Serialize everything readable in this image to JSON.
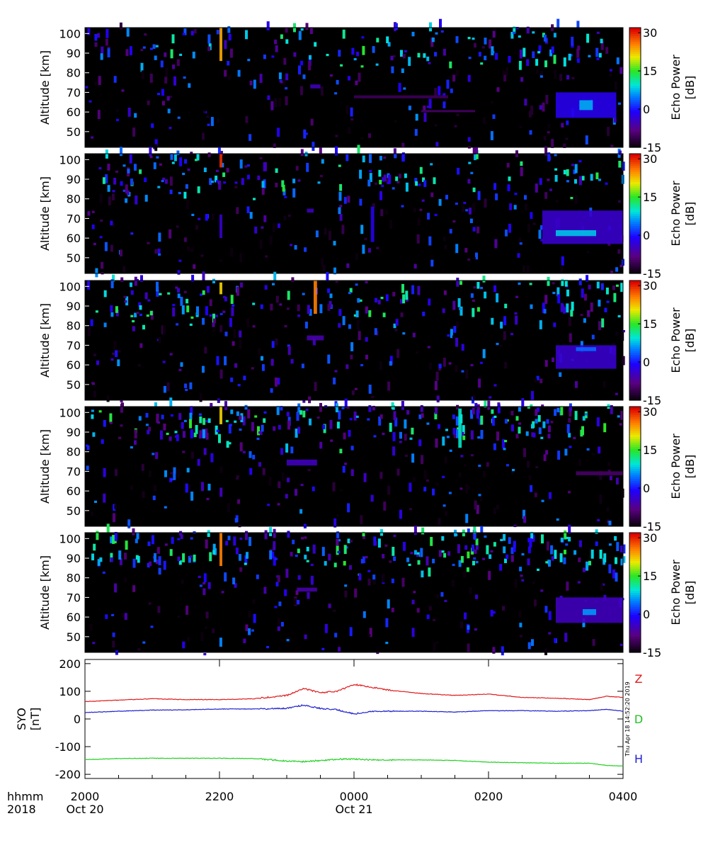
{
  "chart_data": [
    {
      "type": "heatmap",
      "panel": 1,
      "ylabel": "Altitude [km]",
      "yticks": [
        "100",
        "90",
        "80",
        "70",
        "60",
        "50"
      ],
      "ylim": [
        42,
        103
      ],
      "xlim": [
        "2018-10-20 20:00",
        "2018-10-21 04:00"
      ],
      "colorbar": {
        "label_line1": "Echo Power",
        "label_line2": "[dB]",
        "ticks": [
          "30",
          "15",
          "0",
          "-15"
        ],
        "range": [
          -15,
          32
        ]
      },
      "scatter_layers": [
        [
          86,
          103,
          120,
          -5
        ],
        [
          80,
          90,
          45,
          -3
        ],
        [
          40,
          80,
          160,
          -12
        ]
      ],
      "features": [
        {
          "t0": 2.0,
          "t1": 2.02,
          "alt0": 86,
          "alt1": 103,
          "dB": 24
        },
        {
          "t0": 3.35,
          "t1": 3.5,
          "alt0": 72,
          "alt1": 74,
          "dB": -5
        },
        {
          "t0": 4.0,
          "t1": 5.4,
          "alt0": 67,
          "alt1": 68.5,
          "dB": -11
        },
        {
          "t0": 5.0,
          "t1": 5.8,
          "alt0": 60,
          "alt1": 61,
          "dB": -10
        },
        {
          "t0": 7.0,
          "t1": 7.9,
          "alt0": 57,
          "alt1": 70,
          "dB": -2
        },
        {
          "t0": 7.35,
          "t1": 7.55,
          "alt0": 61,
          "alt1": 66,
          "dB": 7
        }
      ]
    },
    {
      "type": "heatmap",
      "panel": 2,
      "ylabel": "Altitude [km]",
      "yticks": [
        "100",
        "90",
        "80",
        "70",
        "60",
        "50"
      ],
      "ylim": [
        42,
        103
      ],
      "xlim": [
        "2018-10-20 20:00",
        "2018-10-21 04:00"
      ],
      "colorbar": {
        "label_line1": "Echo Power",
        "label_line2": "[dB]",
        "ticks": [
          "30",
          "15",
          "0",
          "-15"
        ],
        "range": [
          -15,
          32
        ]
      },
      "scatter_layers": [
        [
          85,
          103,
          140,
          -5
        ],
        [
          78,
          90,
          55,
          -3
        ],
        [
          40,
          80,
          160,
          -12
        ]
      ],
      "features": [
        {
          "t0": 2.0,
          "t1": 2.02,
          "alt0": 96,
          "alt1": 103,
          "dB": 30
        },
        {
          "t0": 2.0,
          "t1": 2.02,
          "alt0": 60,
          "alt1": 72,
          "dB": -4
        },
        {
          "t0": 3.3,
          "t1": 3.4,
          "alt0": 73,
          "alt1": 75,
          "dB": -5
        },
        {
          "t0": 4.25,
          "t1": 4.3,
          "alt0": 58,
          "alt1": 76,
          "dB": -2
        },
        {
          "t0": 6.8,
          "t1": 8.0,
          "alt0": 57,
          "alt1": 74,
          "dB": -4
        },
        {
          "t0": 7.0,
          "t1": 7.6,
          "alt0": 61,
          "alt1": 64,
          "dB": 8
        }
      ]
    },
    {
      "type": "heatmap",
      "panel": 3,
      "ylabel": "Altitude [km]",
      "yticks": [
        "100",
        "90",
        "80",
        "70",
        "60",
        "50"
      ],
      "ylim": [
        42,
        103
      ],
      "xlim": [
        "2018-10-20 20:00",
        "2018-10-21 04:00"
      ],
      "colorbar": {
        "label_line1": "Echo Power",
        "label_line2": "[dB]",
        "ticks": [
          "30",
          "15",
          "0",
          "-15"
        ],
        "range": [
          -15,
          32
        ]
      },
      "scatter_layers": [
        [
          84,
          103,
          160,
          -4
        ],
        [
          78,
          88,
          50,
          -3
        ],
        [
          40,
          80,
          160,
          -12
        ]
      ],
      "features": [
        {
          "t0": 3.4,
          "t1": 3.45,
          "alt0": 86,
          "alt1": 103,
          "dB": 26
        },
        {
          "t0": 2.0,
          "t1": 2.02,
          "alt0": 96,
          "alt1": 102,
          "dB": 22
        },
        {
          "t0": 3.3,
          "t1": 3.55,
          "alt0": 72.5,
          "alt1": 75,
          "dB": -6
        },
        {
          "t0": 7.0,
          "t1": 7.9,
          "alt0": 58,
          "alt1": 70,
          "dB": -4
        },
        {
          "t0": 7.3,
          "t1": 7.6,
          "alt0": 67,
          "alt1": 69,
          "dB": 4
        }
      ]
    },
    {
      "type": "heatmap",
      "panel": 4,
      "ylabel": "Altitude [km]",
      "yticks": [
        "100",
        "90",
        "80",
        "70",
        "60",
        "50"
      ],
      "ylim": [
        42,
        103
      ],
      "xlim": [
        "2018-10-20 20:00",
        "2018-10-21 04:00"
      ],
      "colorbar": {
        "label_line1": "Echo Power",
        "label_line2": "[dB]",
        "ticks": [
          "30",
          "15",
          "0",
          "-15"
        ],
        "range": [
          -15,
          32
        ]
      },
      "scatter_layers": [
        [
          86,
          103,
          200,
          -3
        ],
        [
          78,
          90,
          55,
          -3
        ],
        [
          40,
          80,
          150,
          -12
        ]
      ],
      "features": [
        {
          "t0": 2.0,
          "t1": 2.02,
          "alt0": 94,
          "alt1": 103,
          "dB": 22
        },
        {
          "t0": 5.55,
          "t1": 5.6,
          "alt0": 82,
          "alt1": 102,
          "dB": 10
        },
        {
          "t0": 3.0,
          "t1": 3.45,
          "alt0": 73,
          "alt1": 76,
          "dB": -5
        },
        {
          "t0": 7.3,
          "t1": 8.0,
          "alt0": 68,
          "alt1": 70,
          "dB": -10
        }
      ]
    },
    {
      "type": "heatmap",
      "panel": 5,
      "ylabel": "Altitude [km]",
      "yticks": [
        "100",
        "90",
        "80",
        "70",
        "60",
        "50"
      ],
      "ylim": [
        42,
        103
      ],
      "xlim": [
        "2018-10-20 20:00",
        "2018-10-21 04:00"
      ],
      "colorbar": {
        "label_line1": "Echo Power",
        "label_line2": "[dB]",
        "ticks": [
          "30",
          "15",
          "0",
          "-15"
        ],
        "range": [
          -15,
          32
        ]
      },
      "scatter_layers": [
        [
          85,
          103,
          190,
          -3
        ],
        [
          78,
          90,
          50,
          -3
        ],
        [
          40,
          80,
          150,
          -12
        ]
      ],
      "features": [
        {
          "t0": 2.0,
          "t1": 2.02,
          "alt0": 86,
          "alt1": 103,
          "dB": 26
        },
        {
          "t0": 3.15,
          "t1": 3.45,
          "alt0": 73,
          "alt1": 75,
          "dB": -6
        },
        {
          "t0": 7.0,
          "t1": 8.0,
          "alt0": 57,
          "alt1": 70,
          "dB": -5
        },
        {
          "t0": 7.4,
          "t1": 7.6,
          "alt0": 61,
          "alt1": 64,
          "dB": 6
        }
      ]
    },
    {
      "type": "line",
      "panel": 6,
      "ylabel_line1": "SYO",
      "ylabel_line2": "[nT]",
      "yticks": [
        "200",
        "100",
        "0",
        "-100",
        "-200"
      ],
      "ylim": [
        -215,
        215
      ],
      "grid": false,
      "x": [
        "2000",
        "2030",
        "2100",
        "2130",
        "2200",
        "2230",
        "2300",
        "2315",
        "2330",
        "2345",
        "0000",
        "0015",
        "0030",
        "0100",
        "0130",
        "0200",
        "0230",
        "0300",
        "0330",
        "0345",
        "0400"
      ],
      "series": [
        {
          "name": "Z",
          "color": "#e11b1b",
          "values": [
            63,
            68,
            73,
            70,
            70,
            73,
            85,
            110,
            95,
            100,
            125,
            115,
            105,
            92,
            85,
            90,
            78,
            75,
            70,
            82,
            78
          ]
        },
        {
          "name": "D",
          "color": "#2020d0",
          "values": [
            23,
            28,
            32,
            33,
            36,
            36,
            38,
            50,
            38,
            33,
            18,
            28,
            28,
            28,
            25,
            30,
            30,
            28,
            30,
            35,
            28
          ]
        },
        {
          "name": "H",
          "color": "#22d022",
          "values": [
            -147,
            -143,
            -142,
            -142,
            -142,
            -143,
            -152,
            -154,
            -150,
            -145,
            -145,
            -148,
            -148,
            -148,
            -150,
            -156,
            -158,
            -160,
            -160,
            -168,
            -170
          ]
        }
      ]
    }
  ],
  "xaxis": {
    "row_label": "hhmm",
    "year": "2018",
    "ticks": [
      {
        "label": "2000",
        "hours": 0,
        "date": "Oct 20"
      },
      {
        "label": "2200",
        "hours": 2,
        "date": ""
      },
      {
        "label": "0000",
        "hours": 4,
        "date": "Oct 21"
      },
      {
        "label": "0200",
        "hours": 6,
        "date": ""
      },
      {
        "label": "0400",
        "hours": 8,
        "date": ""
      }
    ]
  },
  "timestamp": "Thu Apr 18 14:52:20 2019"
}
